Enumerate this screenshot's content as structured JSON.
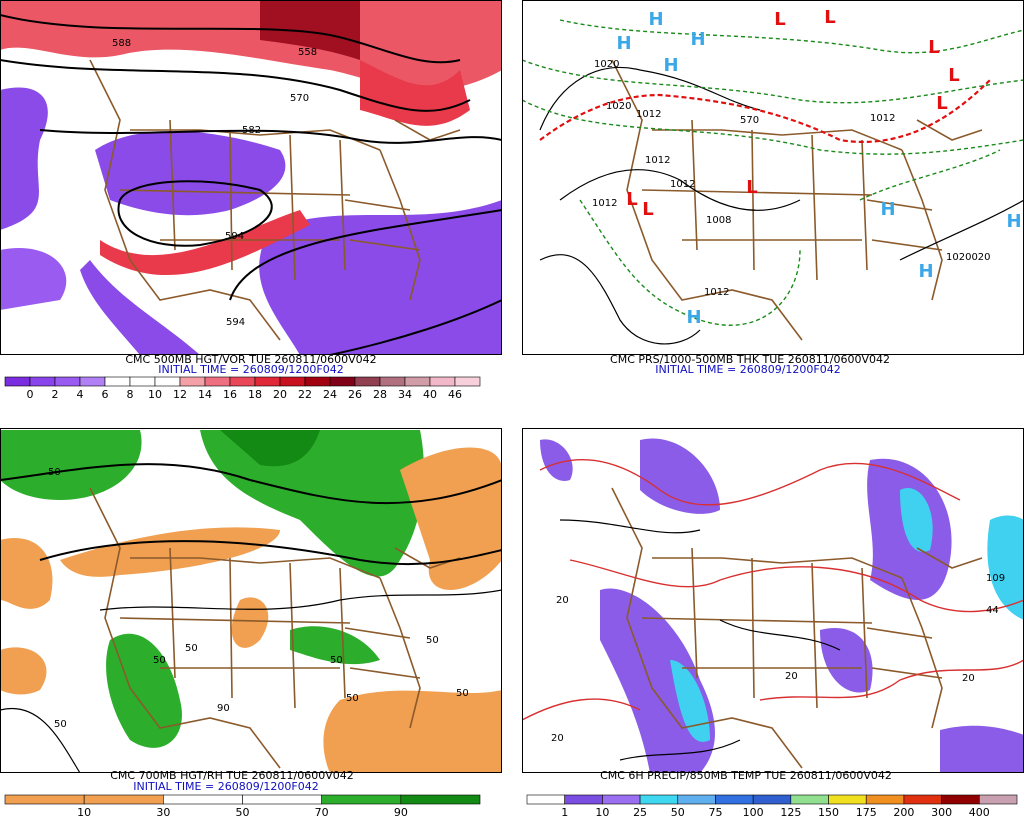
{
  "panels": [
    {
      "title": "CMC 500MB HGT/VOR TUE 260811/0600V042",
      "initial": "INITIAL TIME = 260809/1200F042",
      "colorbar": [
        0,
        2,
        4,
        6,
        8,
        10,
        12,
        14,
        16,
        18,
        20,
        22,
        24,
        26,
        28,
        34,
        40,
        46
      ],
      "contour_labels": [
        "588",
        "558",
        "570",
        "582",
        "594",
        "594"
      ]
    },
    {
      "title": "CMC PRS/1000-500MB THK TUE 260811/0600V042",
      "initial": "INITIAL TIME = 260809/1200F042",
      "centers": [
        "H",
        "H",
        "H",
        "H",
        "L",
        "L",
        "L",
        "L",
        "L",
        "L",
        "L",
        "L",
        "H",
        "H",
        "H"
      ],
      "contour_labels": [
        "1020",
        "1020",
        "1012",
        "1012",
        "1012",
        "1012",
        "1008",
        "1012",
        "570",
        "1012",
        "1020020"
      ]
    },
    {
      "title": "CMC 700MB HGT/RH TUE 260811/0600V042",
      "initial": "INITIAL TIME = 260809/1200F042",
      "colorbar": [
        10,
        30,
        50,
        70,
        90
      ],
      "contour_labels": [
        "50",
        "50",
        "50",
        "50",
        "50",
        "50",
        "90",
        "50",
        "50"
      ]
    },
    {
      "title": "CMC 6H PRECIP/850MB TEMP TUE 260811/0600V042",
      "colorbar": [
        1,
        10,
        25,
        50,
        75,
        100,
        125,
        150,
        175,
        200,
        300,
        400
      ],
      "contour_labels": [
        "20",
        "20",
        "20",
        "20",
        "109",
        "44"
      ]
    }
  ]
}
